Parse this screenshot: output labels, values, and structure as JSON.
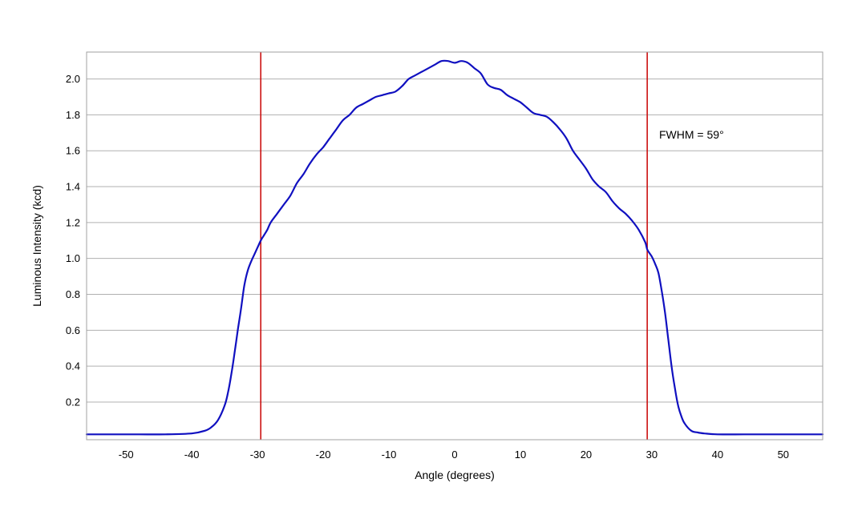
{
  "chart_data": {
    "type": "line",
    "xlabel": "Angle (degrees)",
    "ylabel": "Luminous Intensity (kcd)",
    "xlim": [
      -56,
      56
    ],
    "ylim": [
      -0.01,
      2.15
    ],
    "xticks": [
      -50,
      -40,
      -30,
      -20,
      -10,
      0,
      10,
      20,
      30,
      40,
      50
    ],
    "yticks": [
      0.2,
      0.4,
      0.6,
      0.8,
      1.0,
      1.2,
      1.4,
      1.6,
      1.8,
      2.0
    ],
    "grid": "horizontal",
    "annotation": "FWHM = 59°",
    "vlines": [
      -29.5,
      29.3
    ],
    "colors": {
      "line": "#1010c0",
      "vline": "#cc1111",
      "grid": "#b0b0b0",
      "frame": "#a0a0a0"
    },
    "series": [
      {
        "x": [
          -56,
          -52,
          -48,
          -44,
          -40,
          -38,
          -37,
          -36,
          -35,
          -34.5,
          -34,
          -33.5,
          -33,
          -32.5,
          -32,
          -31.5,
          -31,
          -30.5,
          -30,
          -29.5,
          -29,
          -28.5,
          -28,
          -27,
          -26,
          -25,
          -24,
          -23,
          -22,
          -21,
          -20,
          -19,
          -18,
          -17,
          -16,
          -15,
          -14,
          -13,
          -12,
          -11,
          -10,
          -9,
          -8,
          -7,
          -6,
          -5,
          -4,
          -3,
          -2,
          -1,
          0,
          1,
          2,
          3,
          4,
          5,
          6,
          7,
          8,
          9,
          10,
          11,
          12,
          13,
          14,
          15,
          16,
          17,
          18,
          19,
          20,
          21,
          22,
          23,
          24,
          25,
          26,
          27,
          28,
          29,
          29.3,
          30,
          30.5,
          31,
          31.5,
          32,
          32.5,
          33,
          33.5,
          34,
          34.5,
          35,
          36,
          37,
          38,
          40,
          44,
          48,
          52,
          56
        ],
        "y": [
          0.02,
          0.02,
          0.02,
          0.02,
          0.025,
          0.04,
          0.06,
          0.1,
          0.18,
          0.25,
          0.35,
          0.47,
          0.6,
          0.72,
          0.85,
          0.93,
          0.98,
          1.02,
          1.06,
          1.1,
          1.13,
          1.16,
          1.2,
          1.25,
          1.3,
          1.35,
          1.42,
          1.47,
          1.53,
          1.58,
          1.62,
          1.67,
          1.72,
          1.77,
          1.8,
          1.84,
          1.86,
          1.88,
          1.9,
          1.91,
          1.92,
          1.93,
          1.96,
          2.0,
          2.02,
          2.04,
          2.06,
          2.08,
          2.1,
          2.1,
          2.09,
          2.1,
          2.09,
          2.06,
          2.03,
          1.97,
          1.95,
          1.94,
          1.91,
          1.89,
          1.87,
          1.84,
          1.81,
          1.8,
          1.79,
          1.76,
          1.72,
          1.67,
          1.6,
          1.55,
          1.5,
          1.44,
          1.4,
          1.37,
          1.32,
          1.28,
          1.25,
          1.21,
          1.16,
          1.09,
          1.05,
          1.01,
          0.97,
          0.92,
          0.82,
          0.7,
          0.55,
          0.4,
          0.28,
          0.18,
          0.12,
          0.08,
          0.04,
          0.03,
          0.025,
          0.02,
          0.02,
          0.02,
          0.02,
          0.02
        ]
      }
    ]
  }
}
